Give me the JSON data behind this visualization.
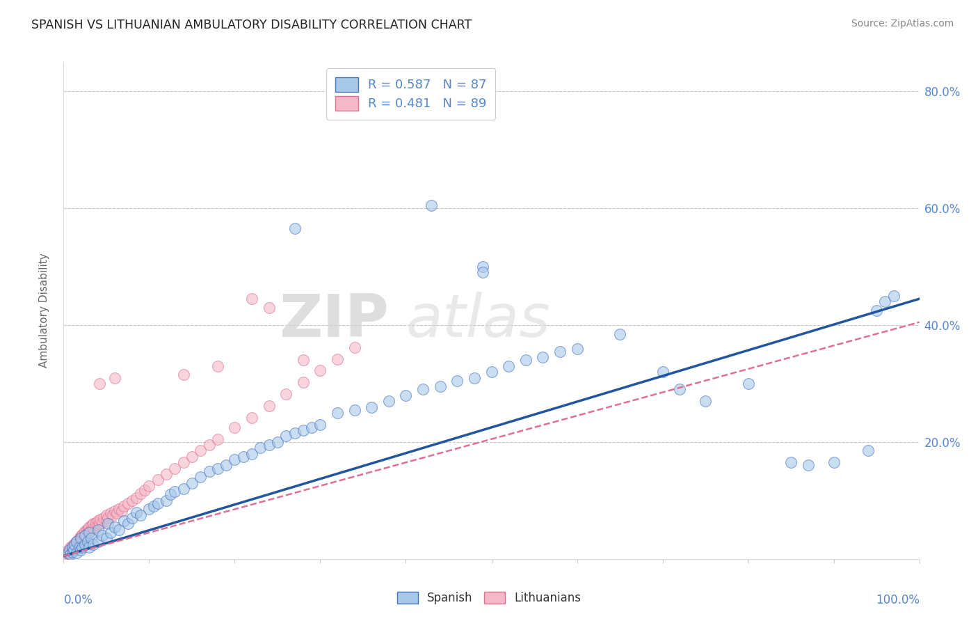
{
  "title": "SPANISH VS LITHUANIAN AMBULATORY DISABILITY CORRELATION CHART",
  "source": "Source: ZipAtlas.com",
  "ylabel": "Ambulatory Disability",
  "r_spanish": 0.587,
  "n_spanish": 87,
  "r_lithuanian": 0.481,
  "n_lithuanian": 89,
  "blue_face_color": "#a8c8e8",
  "blue_edge_color": "#4472c4",
  "pink_face_color": "#f4b8c8",
  "pink_edge_color": "#e07090",
  "blue_line_color": "#2255a0",
  "pink_line_color": "#e07090",
  "tick_label_color": "#5588cc",
  "background_color": "#ffffff",
  "grid_color": "#c8c8c8",
  "title_color": "#222222",
  "source_color": "#888888",
  "watermark_zip_color": "#cccccc",
  "watermark_atlas_color": "#cccccc",
  "legend_edge_color": "#cccccc",
  "xlim": [
    0.0,
    1.0
  ],
  "ylim": [
    0.0,
    0.85
  ],
  "blue_slope": 0.44,
  "blue_intercept": 0.005,
  "pink_slope": 0.4,
  "pink_intercept": 0.005,
  "marker_size": 130,
  "marker_alpha": 0.6,
  "marker_linewidth": 0.8,
  "blue_x": [
    0.005,
    0.007,
    0.008,
    0.01,
    0.01,
    0.012,
    0.013,
    0.015,
    0.015,
    0.018,
    0.02,
    0.02,
    0.022,
    0.025,
    0.025,
    0.028,
    0.03,
    0.03,
    0.032,
    0.035,
    0.04,
    0.04,
    0.045,
    0.05,
    0.052,
    0.055,
    0.06,
    0.065,
    0.07,
    0.075,
    0.08,
    0.085,
    0.09,
    0.1,
    0.105,
    0.11,
    0.12,
    0.125,
    0.13,
    0.14,
    0.15,
    0.16,
    0.17,
    0.18,
    0.19,
    0.2,
    0.21,
    0.22,
    0.23,
    0.24,
    0.25,
    0.26,
    0.27,
    0.28,
    0.29,
    0.3,
    0.32,
    0.34,
    0.36,
    0.38,
    0.4,
    0.42,
    0.44,
    0.46,
    0.48,
    0.5,
    0.52,
    0.54,
    0.56,
    0.58,
    0.6,
    0.65,
    0.7,
    0.72,
    0.75,
    0.8,
    0.85,
    0.87,
    0.9,
    0.94,
    0.27,
    0.43,
    0.49,
    0.49,
    0.95,
    0.96,
    0.97
  ],
  "blue_y": [
    0.01,
    0.015,
    0.008,
    0.012,
    0.02,
    0.015,
    0.025,
    0.01,
    0.03,
    0.02,
    0.015,
    0.035,
    0.02,
    0.025,
    0.04,
    0.03,
    0.02,
    0.045,
    0.035,
    0.025,
    0.03,
    0.05,
    0.04,
    0.035,
    0.06,
    0.045,
    0.055,
    0.05,
    0.065,
    0.06,
    0.07,
    0.08,
    0.075,
    0.085,
    0.09,
    0.095,
    0.1,
    0.11,
    0.115,
    0.12,
    0.13,
    0.14,
    0.15,
    0.155,
    0.16,
    0.17,
    0.175,
    0.18,
    0.19,
    0.195,
    0.2,
    0.21,
    0.215,
    0.22,
    0.225,
    0.23,
    0.25,
    0.255,
    0.26,
    0.27,
    0.28,
    0.29,
    0.295,
    0.305,
    0.31,
    0.32,
    0.33,
    0.34,
    0.345,
    0.355,
    0.36,
    0.385,
    0.32,
    0.29,
    0.27,
    0.3,
    0.165,
    0.16,
    0.165,
    0.185,
    0.565,
    0.605,
    0.5,
    0.49,
    0.425,
    0.44,
    0.45
  ],
  "pink_x": [
    0.003,
    0.004,
    0.005,
    0.005,
    0.006,
    0.007,
    0.008,
    0.008,
    0.009,
    0.01,
    0.01,
    0.011,
    0.012,
    0.012,
    0.013,
    0.014,
    0.015,
    0.015,
    0.016,
    0.017,
    0.018,
    0.018,
    0.019,
    0.02,
    0.02,
    0.021,
    0.022,
    0.022,
    0.023,
    0.024,
    0.025,
    0.025,
    0.026,
    0.027,
    0.028,
    0.029,
    0.03,
    0.03,
    0.032,
    0.033,
    0.035,
    0.035,
    0.037,
    0.038,
    0.04,
    0.04,
    0.042,
    0.043,
    0.045,
    0.047,
    0.05,
    0.05,
    0.052,
    0.055,
    0.057,
    0.06,
    0.062,
    0.065,
    0.068,
    0.07,
    0.075,
    0.08,
    0.085,
    0.09,
    0.095,
    0.1,
    0.11,
    0.12,
    0.13,
    0.14,
    0.15,
    0.16,
    0.17,
    0.18,
    0.2,
    0.22,
    0.24,
    0.26,
    0.28,
    0.3,
    0.32,
    0.34,
    0.042,
    0.06,
    0.14,
    0.18,
    0.22,
    0.24,
    0.28
  ],
  "pink_y": [
    0.005,
    0.01,
    0.008,
    0.015,
    0.01,
    0.012,
    0.015,
    0.02,
    0.012,
    0.015,
    0.022,
    0.018,
    0.02,
    0.025,
    0.022,
    0.028,
    0.02,
    0.03,
    0.025,
    0.032,
    0.028,
    0.035,
    0.03,
    0.038,
    0.025,
    0.04,
    0.035,
    0.042,
    0.038,
    0.045,
    0.04,
    0.048,
    0.042,
    0.05,
    0.045,
    0.052,
    0.048,
    0.055,
    0.05,
    0.058,
    0.052,
    0.06,
    0.055,
    0.062,
    0.058,
    0.065,
    0.06,
    0.068,
    0.062,
    0.07,
    0.065,
    0.075,
    0.07,
    0.078,
    0.075,
    0.082,
    0.078,
    0.085,
    0.082,
    0.09,
    0.095,
    0.1,
    0.105,
    0.112,
    0.118,
    0.125,
    0.135,
    0.145,
    0.155,
    0.165,
    0.175,
    0.185,
    0.195,
    0.205,
    0.225,
    0.242,
    0.262,
    0.282,
    0.302,
    0.322,
    0.342,
    0.362,
    0.3,
    0.31,
    0.315,
    0.33,
    0.445,
    0.43,
    0.34
  ]
}
